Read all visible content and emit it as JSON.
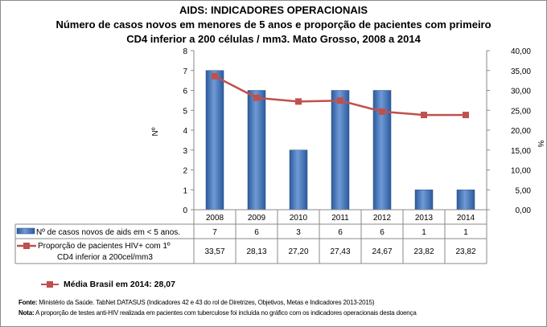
{
  "chart_data": {
    "type": "bar+line",
    "title": "AIDS: INDICADORES OPERACIONAIS",
    "subtitle_line1": "Número de casos novos em menores de 5 anos e proporção de pacientes com primeiro",
    "subtitle_line2": "CD4 inferior a 200 células / mm3. Mato Grosso, 2008 a 2014",
    "categories": [
      "2008",
      "2009",
      "2010",
      "2011",
      "2012",
      "2013",
      "2014"
    ],
    "ylabel_left": "Nº",
    "ylabel_right": "%",
    "ylim_left": [
      0,
      8
    ],
    "yticks_left": [
      "0",
      "1",
      "2",
      "3",
      "4",
      "5",
      "6",
      "7",
      "8"
    ],
    "ylim_right": [
      0,
      40
    ],
    "yticks_right": [
      "0,00",
      "5,00",
      "10,00",
      "15,00",
      "20,00",
      "25,00",
      "30,00",
      "35,00",
      "40,00"
    ],
    "series": [
      {
        "name": "Nº de casos novos de aids em < 5 anos.",
        "type": "bar",
        "color": "#3a6fb8",
        "values": [
          7,
          6,
          3,
          6,
          6,
          1,
          1
        ],
        "labels": [
          "7",
          "6",
          "3",
          "6",
          "6",
          "1",
          "1"
        ]
      },
      {
        "name_line1": "Proporção de pacientes HIV+ com 1º",
        "name_line2": "CD4 inferior a 200cel/mm3",
        "type": "line",
        "color": "#c0504d",
        "values": [
          33.57,
          28.13,
          27.2,
          27.43,
          24.67,
          23.82,
          23.82
        ],
        "labels": [
          "33,57",
          "28,13",
          "27,20",
          "27,43",
          "24,67",
          "23,82",
          "23,82"
        ]
      }
    ],
    "data_table": true,
    "grid": false
  },
  "media": "Média Brasil em 2014: 28,07",
  "fonte_label": "Fonte:",
  "fonte": " Ministério da Saúde. TabNet DATASUS (Indicadores 42 e 43 do rol de Diretrizes, Objetivos, Metas e Indicadores 2013-2015)",
  "nota_label": "Nota:",
  "nota": " A proporção de testes anti-HIV realizada em pacientes com tuberculose foi incluída no gráfico com os indicadores operacionais desta doença"
}
